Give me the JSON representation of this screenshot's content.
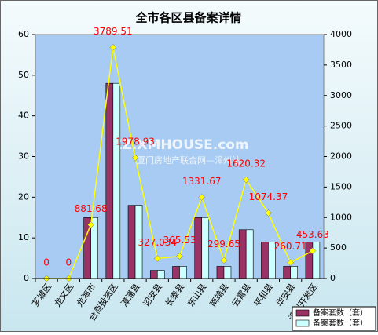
{
  "chart_data": {
    "type": "bar",
    "title": "全市各区县备案详情",
    "watermark": [
      "ZZ.XMHOUSE.com",
      "厦门房地产联合网—漳州站"
    ],
    "categories": [
      "芗城区",
      "龙文区",
      "龙海市",
      "台商投资区",
      "漳浦县",
      "诏安县",
      "长泰县",
      "东山县",
      "南靖县",
      "云霄县",
      "平和县",
      "华安县",
      "漳州开发区"
    ],
    "series": [
      {
        "name": "备案套数（套）",
        "color": "#993366",
        "values": [
          0,
          0,
          15,
          48,
          18,
          2,
          3,
          15,
          3,
          12,
          9,
          3,
          9
        ]
      },
      {
        "name": "备案套数（套）",
        "color": "#ccffff",
        "values": [
          0,
          0,
          15,
          48,
          18,
          2,
          3,
          15,
          3,
          12,
          9,
          3,
          9
        ]
      },
      {
        "type": "line",
        "axis": "y2",
        "color": "#ffff00",
        "label_color": "#ff0000",
        "values": [
          0,
          0,
          881.68,
          3789.51,
          1978.93,
          327.034,
          365.53,
          1331.67,
          299.65,
          1620.32,
          1074.37,
          260.71,
          453.63
        ]
      }
    ],
    "ylim": [
      0,
      60
    ],
    "yticks": [
      0,
      10,
      20,
      30,
      40,
      50,
      60
    ],
    "y2lim": [
      0,
      4000
    ],
    "y2ticks": [
      0,
      500,
      1000,
      1500,
      2000,
      2500,
      3000,
      3500,
      4000
    ],
    "legend": "bottom-right"
  }
}
